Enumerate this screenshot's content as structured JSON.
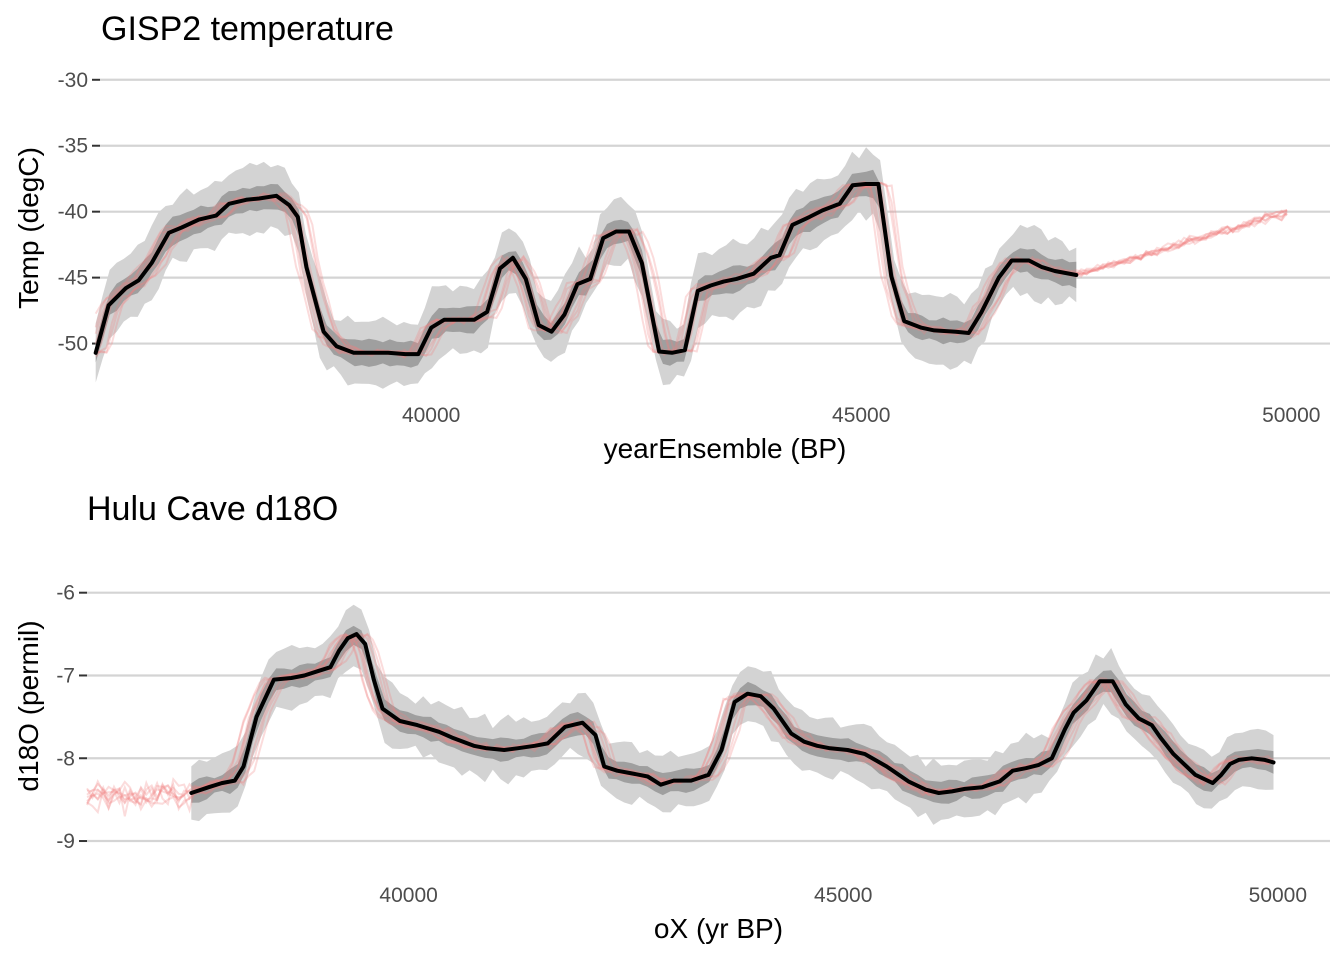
{
  "chart_data": [
    {
      "type": "line",
      "title": "GISP2 temperature",
      "xlabel": "yearEnsemble (BP)",
      "ylabel": "Temp (degC)",
      "xlim": [
        36150,
        50450
      ],
      "ylim": [
        -53.9,
        -28.5
      ],
      "xticks": [
        40000,
        45000,
        50000
      ],
      "xtick_labels": [
        "40000",
        "45000",
        "50000"
      ],
      "yticks": [
        -30,
        -35,
        -40,
        -45,
        -50
      ],
      "ytick_labels": [
        "-30",
        "-35",
        "-40",
        "-45",
        "-50"
      ],
      "grid": "horizontal major gridlines",
      "colors": {
        "median": "#000000",
        "inner_band": "#8c8c8c",
        "outer_band": "#d3d3d3",
        "ensemble": "#f08080"
      },
      "series": [
        {
          "role": "median",
          "x": [
            36100,
            36250,
            36450,
            36600,
            36750,
            36950,
            37100,
            37300,
            37500,
            37650,
            37850,
            38000,
            38200,
            38350,
            38450,
            38550,
            38750,
            38900,
            39100,
            39300,
            39500,
            39700,
            39850,
            40000,
            40150,
            40300,
            40500,
            40650,
            40800,
            40950,
            41100,
            41250,
            41400,
            41550,
            41700,
            41850,
            42000,
            42150,
            42300,
            42450,
            42650,
            42800,
            42950,
            43100,
            43250,
            43400,
            43550,
            43750,
            43950,
            44050,
            44200,
            44400,
            44550,
            44750,
            44900,
            45050,
            45200,
            45350,
            45500,
            45700,
            45850,
            46100,
            46250,
            46400,
            46600,
            46750,
            46950,
            47100,
            47250,
            47500
          ],
          "y": [
            -50.7,
            -47.1,
            -45.8,
            -45.2,
            -43.9,
            -41.6,
            -41.2,
            -40.6,
            -40.3,
            -39.4,
            -39.1,
            -39,
            -38.8,
            -39.5,
            -40.4,
            -44.2,
            -49.1,
            -50.2,
            -50.7,
            -50.7,
            -50.7,
            -50.8,
            -50.8,
            -48.8,
            -48.2,
            -48.2,
            -48.2,
            -47.6,
            -44.3,
            -43.5,
            -45.1,
            -48.6,
            -49.1,
            -47.8,
            -45.5,
            -45.1,
            -42,
            -41.5,
            -41.5,
            -43.9,
            -50.6,
            -50.7,
            -50.5,
            -46,
            -45.6,
            -45.3,
            -45.1,
            -44.7,
            -43.5,
            -43.3,
            -41,
            -40.4,
            -39.9,
            -39.4,
            -38,
            -37.9,
            -37.9,
            -44.9,
            -48.3,
            -48.8,
            -49,
            -49.1,
            -49.2,
            -47.6,
            -45,
            -43.7,
            -43.7,
            -44.2,
            -44.5,
            -44.8
          ]
        }
      ]
    },
    {
      "type": "line",
      "title": "Hulu Cave d18O",
      "xlabel": "oX (yr BP)",
      "ylabel": "d18O (permil)",
      "xlim": [
        36300,
        50600
      ],
      "ylim": [
        -9.35,
        -5.75
      ],
      "xticks": [
        40000,
        45000,
        50000
      ],
      "xtick_labels": [
        "40000",
        "45000",
        "50000"
      ],
      "yticks": [
        -6,
        -7,
        -8,
        -9
      ],
      "ytick_labels": [
        "-6",
        "-7",
        "-8",
        "-9"
      ],
      "grid": "horizontal major gridlines",
      "colors": {
        "median": "#000000",
        "inner_band": "#8c8c8c",
        "outer_band": "#d3d3d3",
        "ensemble": "#f08080"
      },
      "series": [
        {
          "role": "median",
          "x": [
            37500,
            37700,
            37850,
            38000,
            38100,
            38250,
            38450,
            38650,
            38800,
            38950,
            39100,
            39200,
            39300,
            39400,
            39500,
            39600,
            39700,
            39900,
            40100,
            40350,
            40500,
            40750,
            40900,
            41100,
            41250,
            41450,
            41600,
            41800,
            42000,
            42150,
            42250,
            42400,
            42550,
            42750,
            42900,
            43050,
            43250,
            43450,
            43600,
            43750,
            43900,
            44050,
            44200,
            44400,
            44550,
            44700,
            44850,
            45050,
            45250,
            45500,
            45750,
            45950,
            46100,
            46250,
            46400,
            46600,
            46800,
            46950,
            47100,
            47250,
            47400,
            47550,
            47650,
            47800,
            47950,
            48100,
            48250,
            48400,
            48550,
            48650,
            48800,
            48950,
            49050,
            49150,
            49250,
            49350,
            49450,
            49550,
            49700,
            49850,
            49950
          ],
          "y": [
            -8.42,
            -8.35,
            -8.3,
            -8.27,
            -8.1,
            -7.5,
            -7.05,
            -7.03,
            -7.0,
            -6.95,
            -6.9,
            -6.7,
            -6.55,
            -6.5,
            -6.62,
            -7.05,
            -7.4,
            -7.55,
            -7.6,
            -7.68,
            -7.75,
            -7.85,
            -7.88,
            -7.9,
            -7.88,
            -7.85,
            -7.82,
            -7.62,
            -7.57,
            -7.72,
            -8.1,
            -8.15,
            -8.18,
            -8.22,
            -8.32,
            -8.27,
            -8.27,
            -8.2,
            -7.9,
            -7.32,
            -7.22,
            -7.25,
            -7.4,
            -7.7,
            -7.8,
            -7.85,
            -7.88,
            -7.9,
            -7.95,
            -8.1,
            -8.28,
            -8.38,
            -8.42,
            -8.4,
            -8.37,
            -8.35,
            -8.28,
            -8.15,
            -8.12,
            -8.08,
            -8.0,
            -7.65,
            -7.45,
            -7.3,
            -7.07,
            -7.07,
            -7.35,
            -7.52,
            -7.6,
            -7.75,
            -7.95,
            -8.1,
            -8.2,
            -8.25,
            -8.3,
            -8.2,
            -8.07,
            -8.02,
            -8.0,
            -8.02,
            -8.05
          ]
        }
      ]
    }
  ]
}
